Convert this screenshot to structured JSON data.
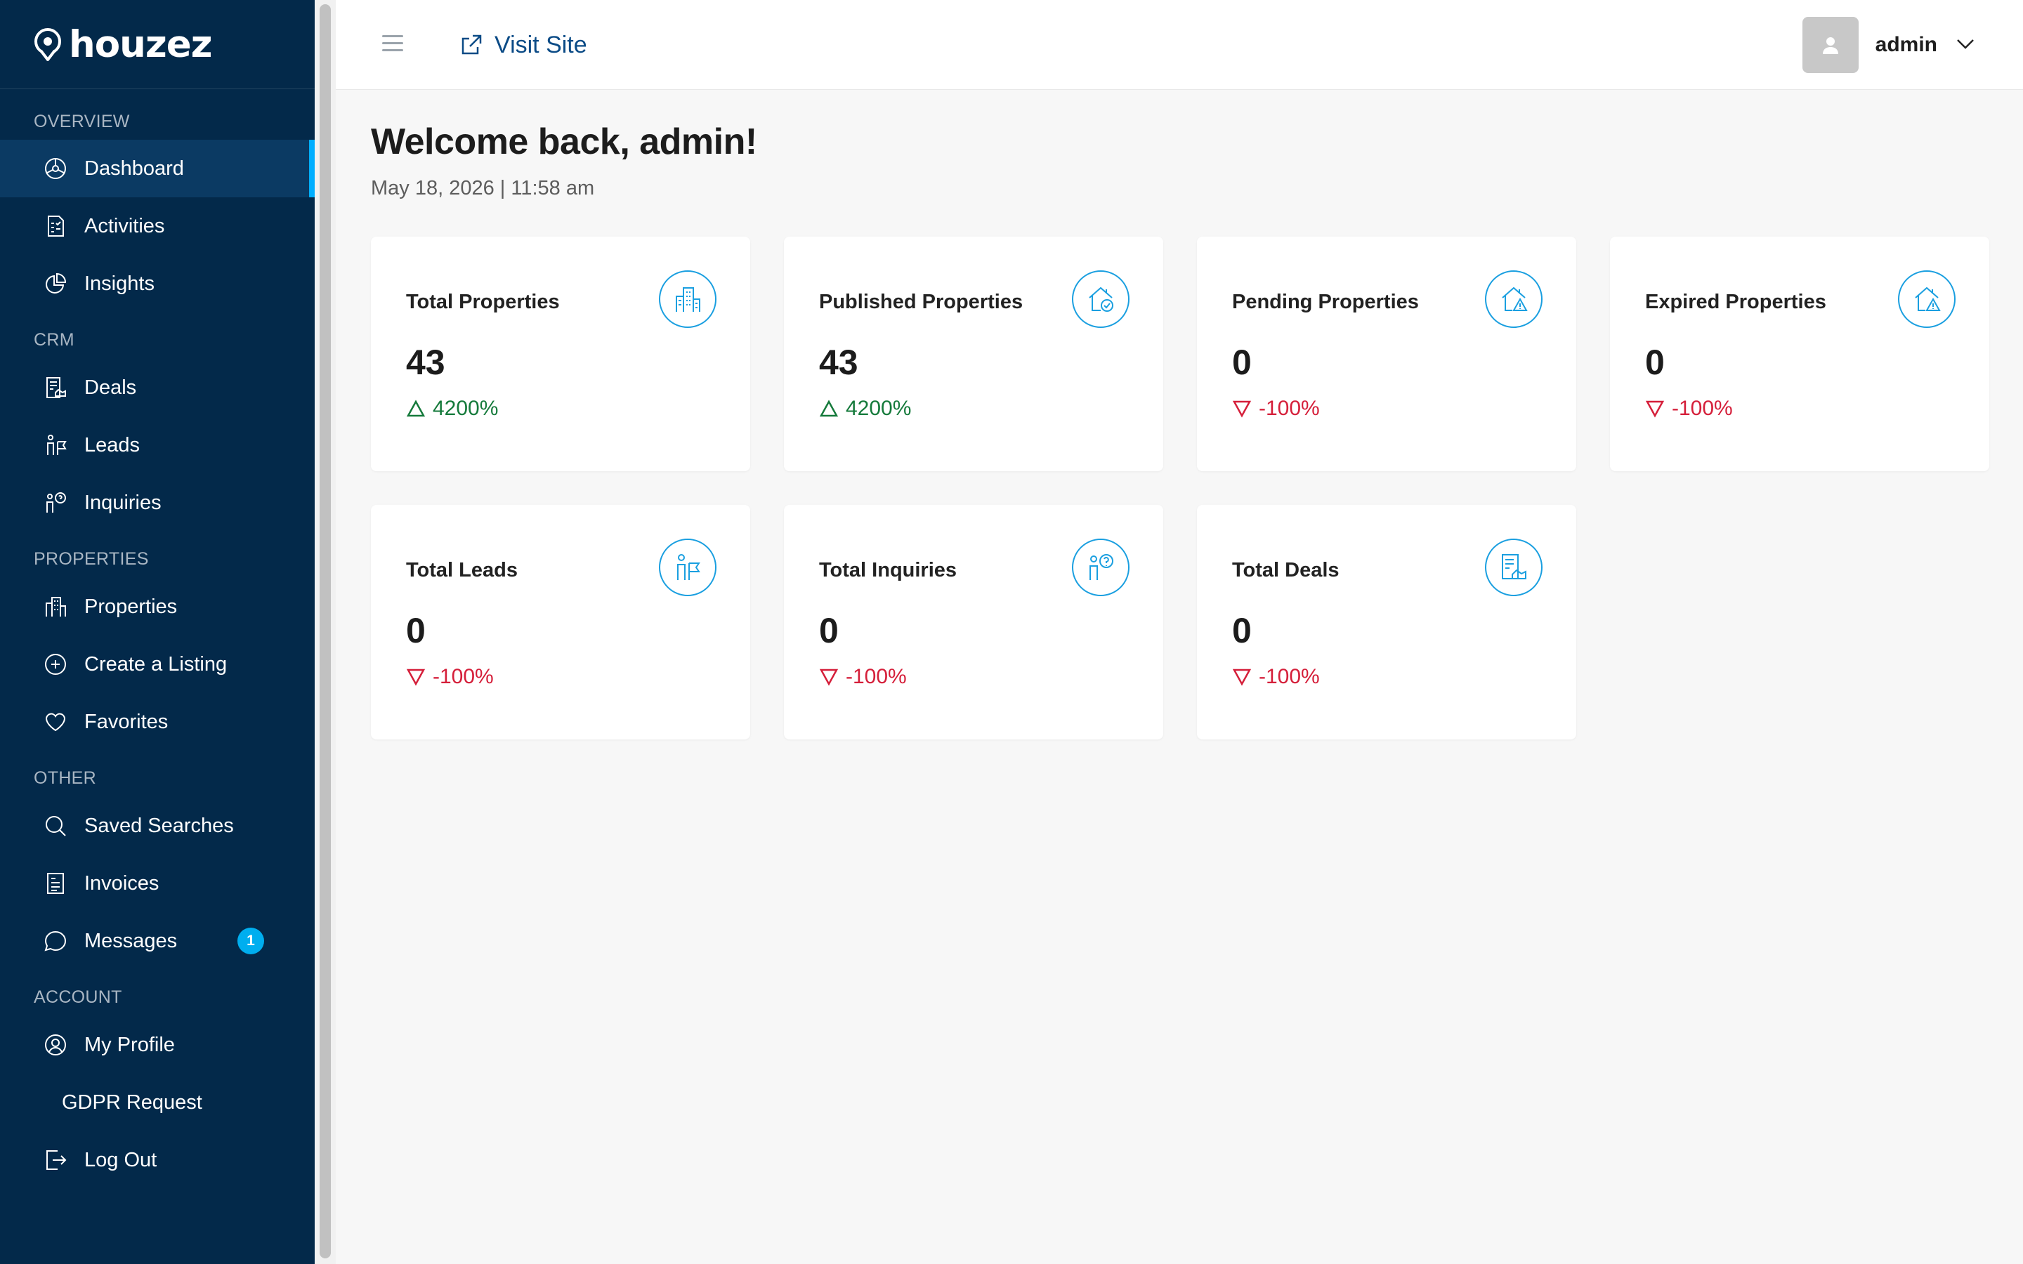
{
  "brand": {
    "name": "houzez"
  },
  "sidebar": {
    "sections": [
      {
        "label": "OVERVIEW",
        "items": [
          {
            "label": "Dashboard",
            "icon": "dashboard-icon",
            "active": true
          },
          {
            "label": "Activities",
            "icon": "activities-icon"
          },
          {
            "label": "Insights",
            "icon": "insights-icon"
          }
        ]
      },
      {
        "label": "CRM",
        "items": [
          {
            "label": "Deals",
            "icon": "deals-icon"
          },
          {
            "label": "Leads",
            "icon": "leads-icon"
          },
          {
            "label": "Inquiries",
            "icon": "inquiries-icon"
          }
        ]
      },
      {
        "label": "PROPERTIES",
        "items": [
          {
            "label": "Properties",
            "icon": "properties-icon"
          },
          {
            "label": "Create a Listing",
            "icon": "plus-circle-icon"
          },
          {
            "label": "Favorites",
            "icon": "heart-icon"
          }
        ]
      },
      {
        "label": "OTHER",
        "items": [
          {
            "label": "Saved Searches",
            "icon": "search-icon"
          },
          {
            "label": "Invoices",
            "icon": "invoice-icon"
          },
          {
            "label": "Messages",
            "icon": "chat-icon",
            "badge": "1"
          }
        ]
      },
      {
        "label": "ACCOUNT",
        "items": [
          {
            "label": "My Profile",
            "icon": "user-circle-icon"
          },
          {
            "label": "GDPR Request",
            "icon": ""
          },
          {
            "label": "Log Out",
            "icon": "logout-icon"
          }
        ]
      }
    ]
  },
  "topbar": {
    "visit_site": "Visit Site",
    "user_name": "admin"
  },
  "main": {
    "welcome": "Welcome back, admin!",
    "date": "May 18, 2026 | 11:58 am",
    "cards": [
      {
        "title": "Total Properties",
        "value": "43",
        "change": "4200%",
        "trend": "up",
        "icon": "buildings-icon"
      },
      {
        "title": "Published Properties",
        "value": "43",
        "change": "4200%",
        "trend": "up",
        "icon": "house-check-icon"
      },
      {
        "title": "Pending Properties",
        "value": "0",
        "change": "-100%",
        "trend": "down",
        "icon": "house-warning-icon"
      },
      {
        "title": "Expired Properties",
        "value": "0",
        "change": "-100%",
        "trend": "down",
        "icon": "house-warning-icon"
      },
      {
        "title": "Total Leads",
        "value": "0",
        "change": "-100%",
        "trend": "down",
        "icon": "person-flag-icon"
      },
      {
        "title": "Total Inquiries",
        "value": "0",
        "change": "-100%",
        "trend": "down",
        "icon": "person-question-icon"
      },
      {
        "title": "Total Deals",
        "value": "0",
        "change": "-100%",
        "trend": "down",
        "icon": "deal-document-icon"
      }
    ]
  },
  "colors": {
    "sidebar_bg": "#03294a",
    "accent": "#00aeff",
    "up": "#157a3b",
    "down": "#d51f3a",
    "link": "#0b4b86"
  }
}
